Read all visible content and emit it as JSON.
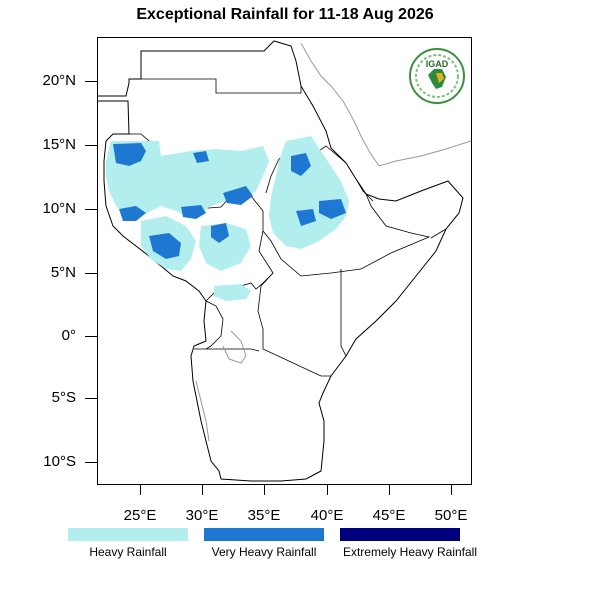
{
  "title": "Exceptional Rainfall for 11-18 Aug 2026",
  "logo_text": "IGAD",
  "y_axis_labels": [
    "20°N",
    "15°N",
    "10°N",
    "5°N",
    "0°",
    "5°S",
    "10°S"
  ],
  "x_axis_labels": [
    "25°E",
    "30°E",
    "35°E",
    "40°E",
    "45°E",
    "50°E"
  ],
  "legend": [
    {
      "label": "Heavy Rainfall",
      "color": "#b2eeee"
    },
    {
      "label": "Very Heavy Rainfall",
      "color": "#1e78d2"
    },
    {
      "label": "Extremely Heavy Rainfall",
      "color": "#00007f"
    }
  ],
  "map_extent": {
    "lon": [
      21.5,
      51.5
    ],
    "lat": [
      -12,
      23.5
    ]
  }
}
